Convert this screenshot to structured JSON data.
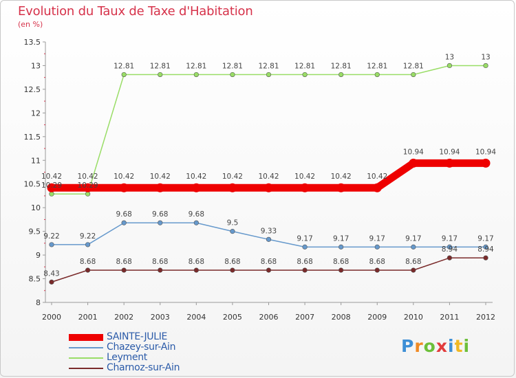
{
  "chart_data": {
    "type": "line",
    "title": "Evolution du Taux de Taxe d'Habitation",
    "subtitle": "(en %)",
    "xlabel": "",
    "ylabel": "",
    "categories": [
      "2000",
      "2001",
      "2002",
      "2003",
      "2004",
      "2005",
      "2006",
      "2007",
      "2008",
      "2009",
      "2010",
      "2011",
      "2012"
    ],
    "ylim": [
      8,
      13.5
    ],
    "yticks": [
      "8",
      "8.5",
      "9",
      "9.5",
      "10",
      "10.5",
      "11",
      "11.5",
      "12",
      "12.5",
      "13",
      "13.5"
    ],
    "grid": false,
    "legend_position": "bottom-left",
    "series": [
      {
        "name": "SAINTE-JULIE",
        "color": "#ee0000",
        "values": [
          10.42,
          10.42,
          10.42,
          10.42,
          10.42,
          10.42,
          10.42,
          10.42,
          10.42,
          10.42,
          10.94,
          10.94,
          10.94
        ],
        "labels": [
          "10.42",
          "10.42",
          "10.42",
          "10.42",
          "10.42",
          "10.42",
          "10.42",
          "10.42",
          "10.42",
          "10.42",
          "10.94",
          "10.94",
          "10.94"
        ]
      },
      {
        "name": "Chazey-sur-Ain",
        "color": "#6699cc",
        "values": [
          9.22,
          9.22,
          9.68,
          9.68,
          9.68,
          9.5,
          9.33,
          9.17,
          9.17,
          9.17,
          9.17,
          9.17,
          9.17
        ],
        "labels": [
          "9.22",
          "9.22",
          "9.68",
          "9.68",
          "9.68",
          "9.5",
          "9.33",
          "9.17",
          "9.17",
          "9.17",
          "9.17",
          "9.17",
          "9.17"
        ]
      },
      {
        "name": "Leyment",
        "color": "#99dd66",
        "values": [
          10.29,
          10.29,
          12.81,
          12.81,
          12.81,
          12.81,
          12.81,
          12.81,
          12.81,
          12.81,
          12.81,
          13,
          13
        ],
        "labels": [
          "10.29",
          "10.29",
          "12.81",
          "12.81",
          "12.81",
          "12.81",
          "12.81",
          "12.81",
          "12.81",
          "12.81",
          "12.81",
          "13",
          "13"
        ]
      },
      {
        "name": "Charnoz-sur-Ain",
        "color": "#7a2a2a",
        "values": [
          8.43,
          8.68,
          8.68,
          8.68,
          8.68,
          8.68,
          8.68,
          8.68,
          8.68,
          8.68,
          8.68,
          8.94,
          8.94
        ],
        "labels": [
          "8.43",
          "8.68",
          "8.68",
          "8.68",
          "8.68",
          "8.68",
          "8.68",
          "8.68",
          "8.68",
          "8.68",
          "8.68",
          "8.94",
          "8.94"
        ]
      }
    ]
  },
  "brand": {
    "letters": [
      "P",
      "r",
      "o",
      "x",
      "i",
      "t",
      "i"
    ],
    "colors": [
      "#3d8fd6",
      "#f08a24",
      "#6cbf3a",
      "#e23c3c",
      "#3d8fd6",
      "#f0b824",
      "#6cbf3a"
    ]
  }
}
